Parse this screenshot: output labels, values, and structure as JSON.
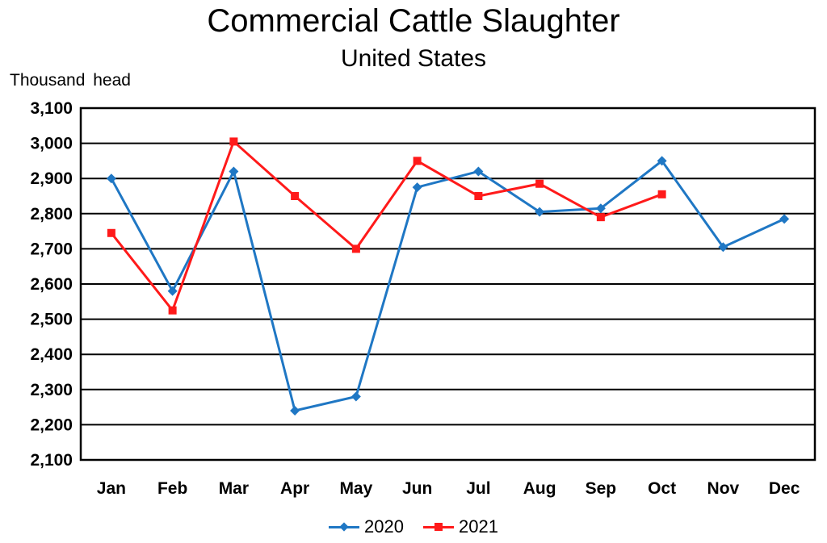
{
  "chart_data": {
    "type": "line",
    "title": "Commercial Cattle Slaughter",
    "subtitle": "United States",
    "ylabel": "Thousand head",
    "xlabel": "",
    "categories": [
      "Jan",
      "Feb",
      "Mar",
      "Apr",
      "May",
      "Jun",
      "Jul",
      "Aug",
      "Sep",
      "Oct",
      "Nov",
      "Dec"
    ],
    "ylim": [
      2100,
      3100
    ],
    "yticks": [
      2100,
      2200,
      2300,
      2400,
      2500,
      2600,
      2700,
      2800,
      2900,
      3000,
      3100
    ],
    "ytick_labels": [
      "2,100",
      "2,200",
      "2,300",
      "2,400",
      "2,500",
      "2,600",
      "2,700",
      "2,800",
      "2,900",
      "3,000",
      "3,100"
    ],
    "grid": true,
    "legend_position": "bottom-center",
    "series": [
      {
        "name": "2020",
        "color": "#1f77c4",
        "marker": "diamond",
        "values": [
          2900,
          2580,
          2920,
          2240,
          2280,
          2875,
          2920,
          2805,
          2815,
          2950,
          2705,
          2785
        ]
      },
      {
        "name": "2021",
        "color": "#ff1a1a",
        "marker": "square",
        "values": [
          2745,
          2525,
          3005,
          2850,
          2700,
          2950,
          2850,
          2885,
          2790,
          2855,
          null,
          null
        ]
      }
    ]
  }
}
